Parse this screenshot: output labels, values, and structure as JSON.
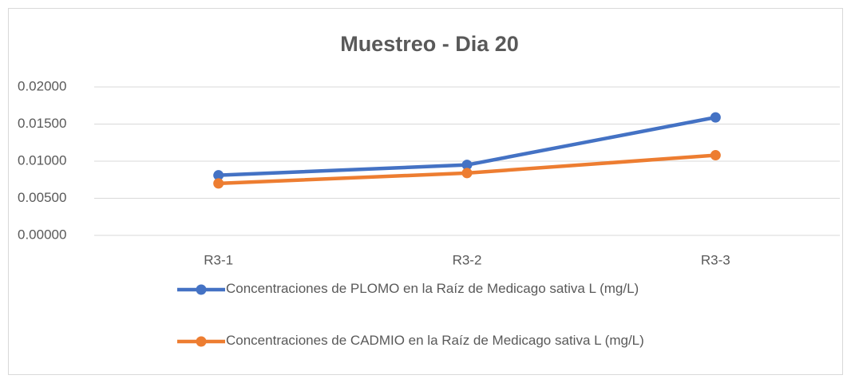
{
  "chart_data": {
    "type": "line",
    "title": "Muestreo - Dia 20",
    "categories": [
      "R3-1",
      "R3-2",
      "R3-3"
    ],
    "series": [
      {
        "name": "Concentraciones de PLOMO en la Raíz de Medicago sativa L (mg/L)",
        "color": "#4472c4",
        "values": [
          0.0081,
          0.0095,
          0.0159
        ]
      },
      {
        "name": "Concentraciones de CADMIO en la Raíz de Medicago sativa L (mg/L)",
        "color": "#ed7d31",
        "values": [
          0.007,
          0.0084,
          0.0108
        ]
      }
    ],
    "ylim": [
      0,
      0.02
    ],
    "yticks": [
      {
        "value": 0,
        "label": "0.00000"
      },
      {
        "value": 0.005,
        "label": "0.00500"
      },
      {
        "value": 0.01,
        "label": "0.01000"
      },
      {
        "value": 0.015,
        "label": "0.01500"
      },
      {
        "value": 0.02,
        "label": "0.02000"
      }
    ],
    "grid": true,
    "legend": "bottom"
  }
}
